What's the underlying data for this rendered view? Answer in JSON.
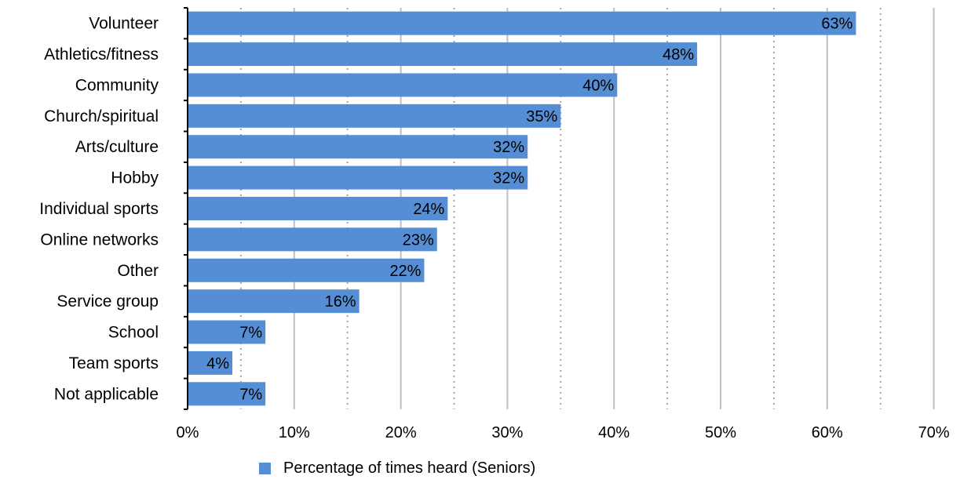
{
  "chart_data": {
    "type": "bar",
    "orientation": "horizontal",
    "categories": [
      "Volunteer",
      "Athletics/fitness",
      "Community",
      "Church/spiritual",
      "Arts/culture",
      "Hobby",
      "Individual sports",
      "Online networks",
      "Other",
      "Service group",
      "School",
      "Team sports",
      "Not applicable"
    ],
    "series": [
      {
        "name": "Percentage of times heard (Seniors)",
        "values": [
          62.7,
          47.8,
          40.3,
          35.0,
          31.9,
          31.9,
          24.4,
          23.4,
          22.2,
          16.1,
          7.3,
          4.2,
          7.3
        ],
        "labels": [
          "63%",
          "48%",
          "40%",
          "35%",
          "32%",
          "32%",
          "24%",
          "23%",
          "22%",
          "16%",
          "7%",
          "4%",
          "7%"
        ],
        "color": "#558ed5"
      }
    ],
    "x_ticks": [
      "0%",
      "10%",
      "20%",
      "30%",
      "40%",
      "50%",
      "60%",
      "70%"
    ],
    "xlim": [
      0,
      70
    ],
    "xlabel": "",
    "ylabel": "",
    "grid": {
      "major": true,
      "minor_dotted": true,
      "major_color": "#bfbfbf",
      "minor_color": "#a6a6a6"
    },
    "legend_position": "bottom"
  }
}
